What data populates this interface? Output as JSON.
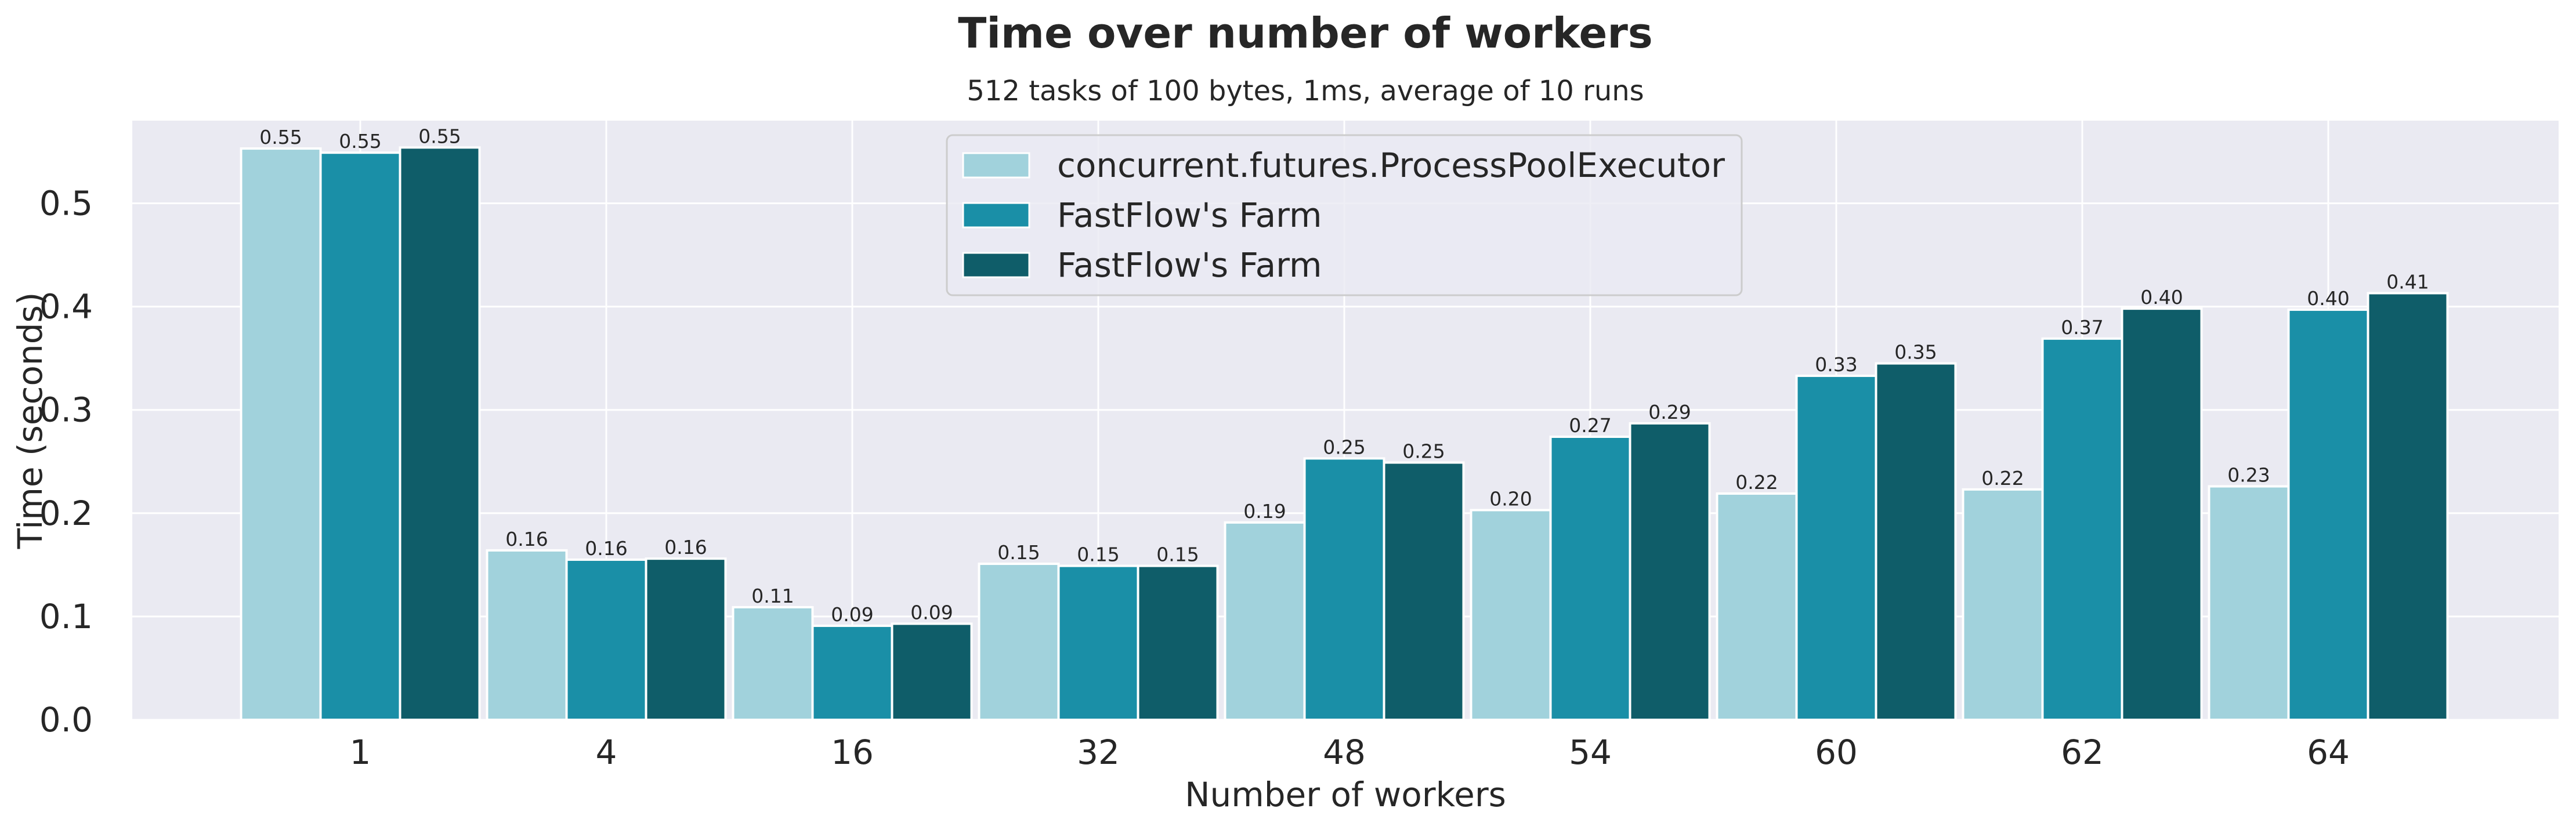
{
  "chart_data": {
    "type": "bar",
    "title": "Time over number of workers",
    "subtitle": "512 tasks of 100 bytes, 1ms, average of 10 runs",
    "xlabel": "Number of workers",
    "ylabel": "Time (seconds)",
    "categories": [
      "1",
      "4",
      "16",
      "32",
      "48",
      "54",
      "60",
      "62",
      "64"
    ],
    "ylim": [
      0,
      0.58
    ],
    "yticks": [
      "0.0",
      "0.1",
      "0.2",
      "0.3",
      "0.4",
      "0.5"
    ],
    "grid": true,
    "legend_position": "top-center",
    "series": [
      {
        "name": "concurrent.futures.ProcessPoolExecutor",
        "color": "#a1d2dc",
        "values": [
          0.553,
          0.164,
          0.109,
          0.151,
          0.191,
          0.203,
          0.219,
          0.223,
          0.226
        ],
        "labels": [
          "0.55",
          "0.16",
          "0.11",
          "0.15",
          "0.19",
          "0.20",
          "0.22",
          "0.22",
          "0.23"
        ]
      },
      {
        "name": "FastFlow's Farm",
        "color": "#1a8fa7",
        "values": [
          0.549,
          0.155,
          0.091,
          0.149,
          0.253,
          0.274,
          0.333,
          0.369,
          0.397
        ],
        "labels": [
          "0.55",
          "0.16",
          "0.09",
          "0.15",
          "0.25",
          "0.27",
          "0.33",
          "0.37",
          "0.40"
        ]
      },
      {
        "name": "FastFlow's Farm",
        "color": "#0f5d69",
        "values": [
          0.554,
          0.156,
          0.093,
          0.149,
          0.249,
          0.287,
          0.345,
          0.398,
          0.413
        ],
        "labels": [
          "0.55",
          "0.16",
          "0.09",
          "0.15",
          "0.25",
          "0.29",
          "0.35",
          "0.40",
          "0.41"
        ]
      }
    ]
  }
}
